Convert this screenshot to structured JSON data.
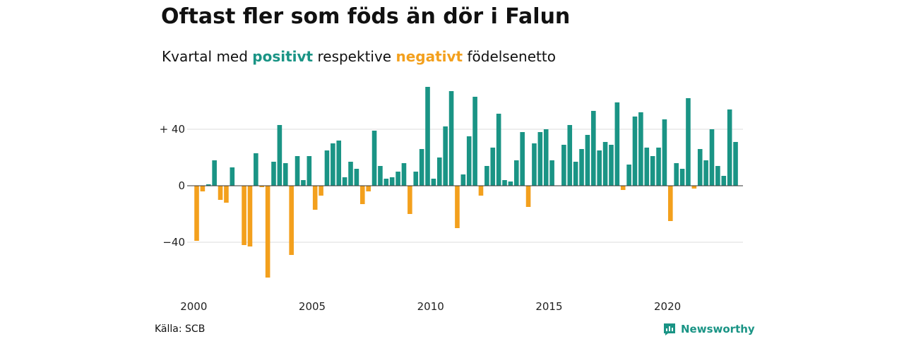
{
  "header": {
    "title": "Oftast fler som föds än dör i Falun",
    "subtitle_pre": "Kvartal med ",
    "subtitle_pos": "positivt",
    "subtitle_mid": " respektive ",
    "subtitle_neg": "negativt",
    "subtitle_post": " födelsenetto"
  },
  "footer": {
    "source": "Källa: SCB",
    "brand": "Newsworthy",
    "brand_icon": "newsworthy-logo-icon"
  },
  "colors": {
    "positive": "#1a9485",
    "negative": "#f3a01d",
    "grid": "#dddddd",
    "baseline": "#333333"
  },
  "chart_data": {
    "type": "bar",
    "title": "Oftast fler som föds än dör i Falun",
    "subtitle": "Kvartal med positivt respektive negativt födelsenetto",
    "xlabel": "",
    "ylabel": "",
    "ylim": [
      -68,
      72
    ],
    "y_ticks": [
      {
        "value": 40,
        "label": "+ 40"
      },
      {
        "value": 0,
        "label": "0"
      },
      {
        "value": -40,
        "label": "−40"
      }
    ],
    "x_ticks": [
      {
        "value": 2000,
        "label": "2000"
      },
      {
        "value": 2005,
        "label": "2005"
      },
      {
        "value": 2010,
        "label": "2010"
      },
      {
        "value": 2015,
        "label": "2015"
      },
      {
        "value": 2020,
        "label": "2020"
      }
    ],
    "grid": true,
    "start_year": 2000,
    "periods_per_year": 4,
    "values": [
      -39,
      -4,
      1,
      18,
      -10,
      -12,
      13,
      0,
      -42,
      -43,
      23,
      -1,
      -65,
      17,
      43,
      16,
      -49,
      21,
      4,
      21,
      -17,
      -7,
      25,
      30,
      32,
      6,
      17,
      12,
      -13,
      -4,
      39,
      14,
      5,
      6,
      10,
      16,
      -20,
      10,
      26,
      70,
      5,
      20,
      42,
      67,
      -30,
      8,
      35,
      63,
      -7,
      14,
      27,
      51,
      4,
      3,
      18,
      38,
      -15,
      30,
      38,
      40,
      18,
      0,
      29,
      43,
      17,
      26,
      36,
      53,
      25,
      31,
      29,
      59,
      -3,
      15,
      49,
      52,
      27,
      21,
      27,
      47,
      -25,
      16,
      12,
      62,
      -2,
      26,
      18,
      40,
      14,
      7,
      54,
      31
    ]
  }
}
